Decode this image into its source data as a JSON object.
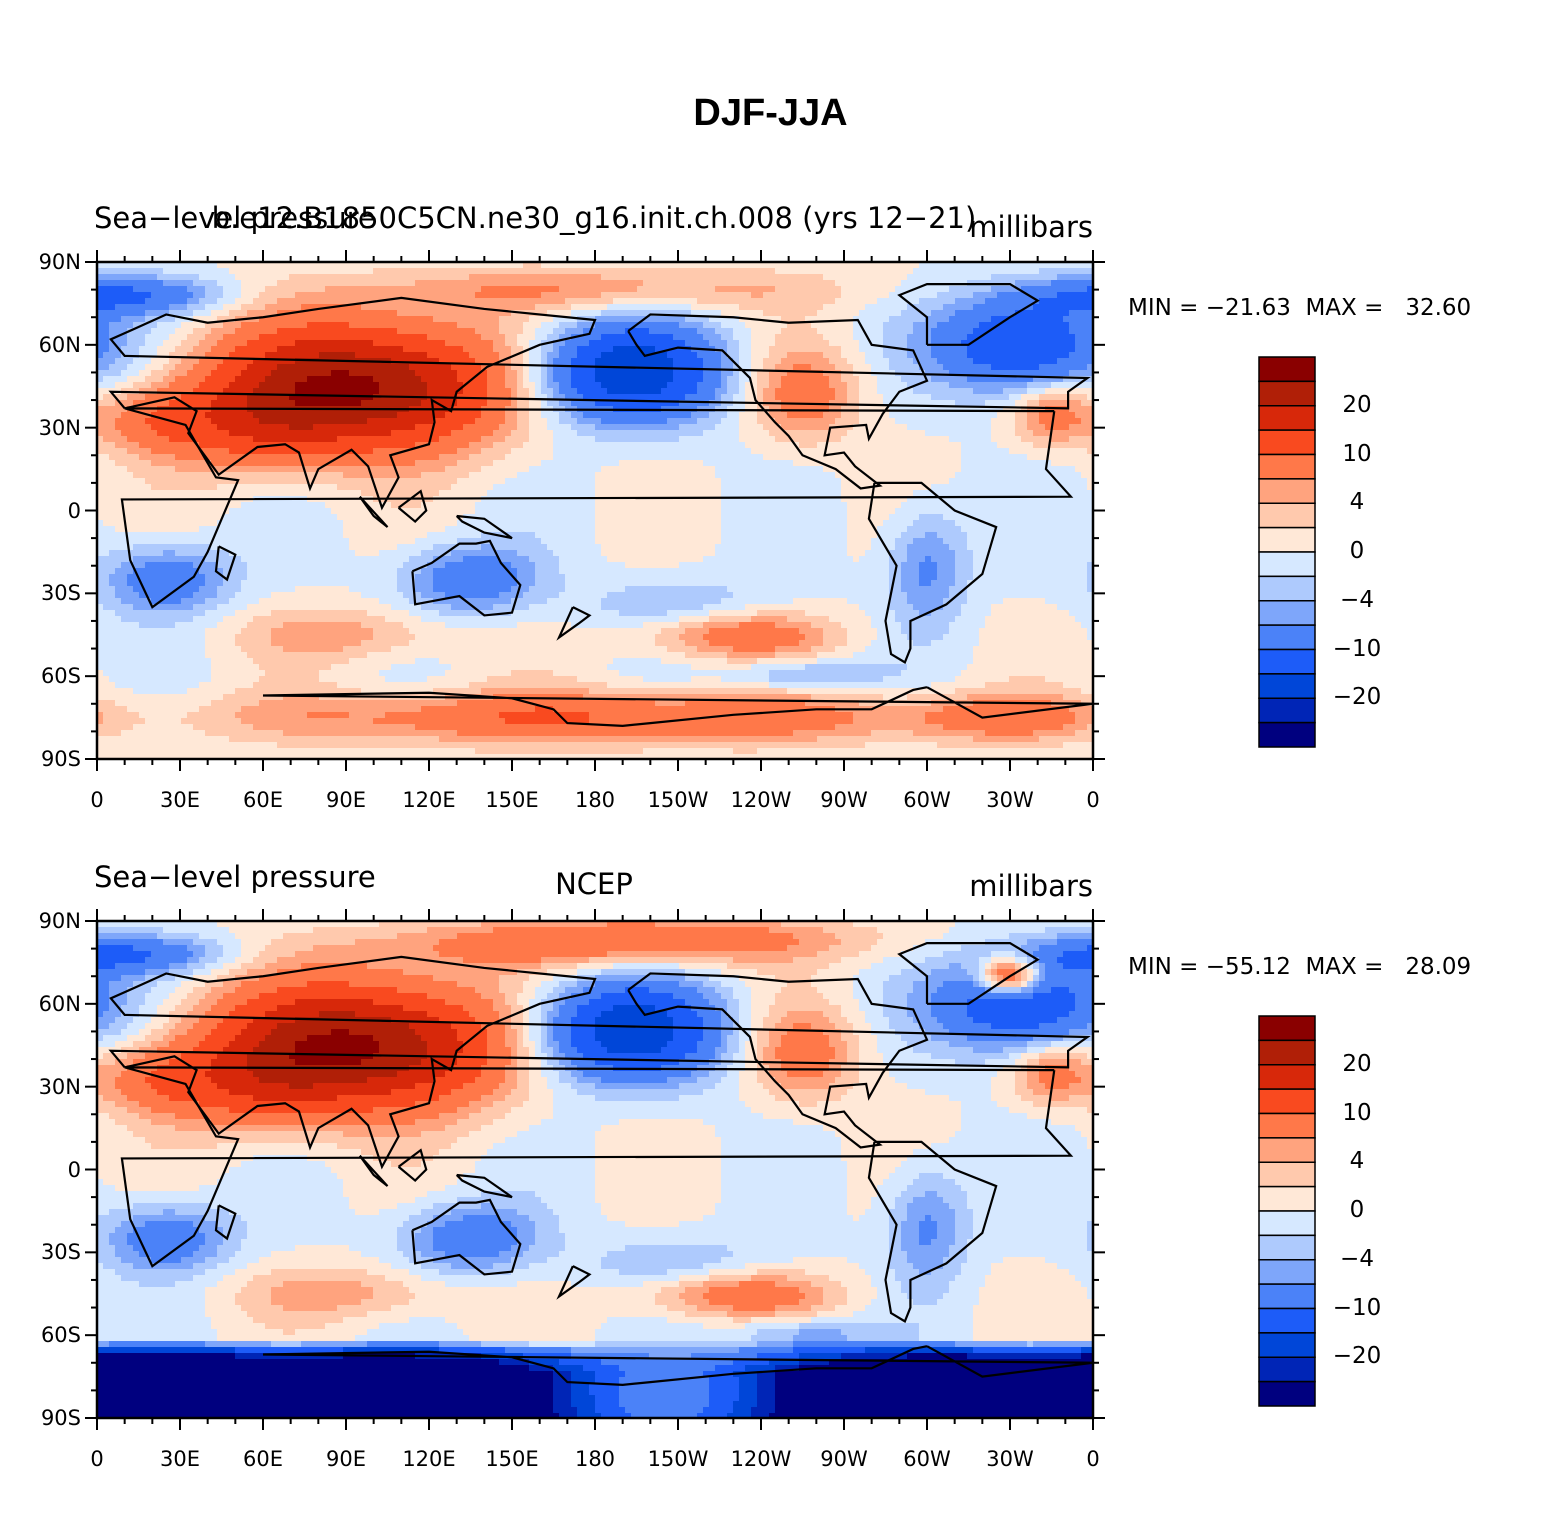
{
  "title": "DJF-JJA",
  "palette": [
    "#00007f",
    "#0025b6",
    "#0046d8",
    "#1d5cf8",
    "#4b82f8",
    "#7ea6fa",
    "#aecafd",
    "#d6e8ff",
    "#ffe8d7",
    "#ffc9ad",
    "#ffa37e",
    "#ff7849",
    "#f94a1f",
    "#d7280a",
    "#b01f07",
    "#8a0000"
  ],
  "colorbar": {
    "labels": [
      "20",
      "10",
      "4",
      "0",
      "−4",
      "−10",
      "−20"
    ]
  },
  "lon_ticks": [
    "0",
    "30E",
    "60E",
    "90E",
    "120E",
    "150E",
    "180",
    "150W",
    "120W",
    "90W",
    "60W",
    "30W",
    "0"
  ],
  "lat_ticks": [
    "90N",
    "60N",
    "30N",
    "0",
    "30S",
    "60S",
    "90S"
  ],
  "panels": [
    {
      "label_left": "Sea−level pressure",
      "label_center": "b.e12.B1850C5CN.ne30_g16.init.ch.008 (yrs 12−21)",
      "label_right": "millibars",
      "minmax": "MIN = −21.63  MAX =   32.60"
    },
    {
      "label_left": "Sea−level pressure",
      "label_center": "NCEP",
      "label_right": "millibars",
      "minmax": "MIN = −55.12  MAX =   28.09"
    }
  ]
}
